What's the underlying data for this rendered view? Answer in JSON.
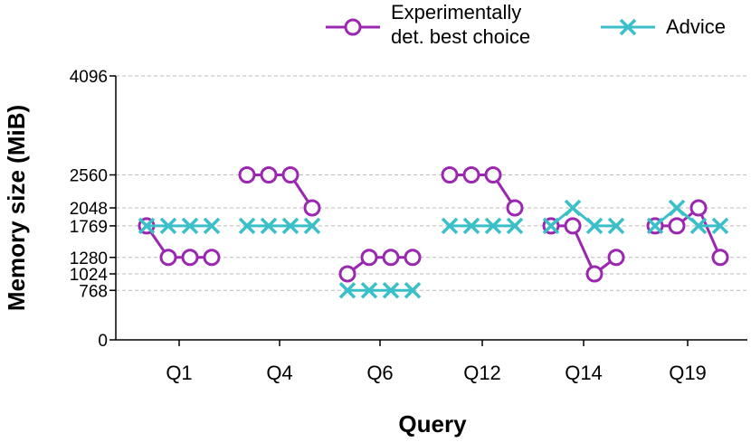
{
  "chart_data": {
    "type": "line",
    "title": "",
    "xlabel": "Query",
    "ylabel": "Memory size (MiB)",
    "ylim": [
      0,
      4096
    ],
    "yticks": [
      0,
      768,
      1024,
      1280,
      1769,
      2048,
      2560,
      4096
    ],
    "grid": "dashed horizontal at y ticks",
    "legend_position": "top-right",
    "categories": [
      "Q1",
      "Q4",
      "Q6",
      "Q12",
      "Q14",
      "Q19"
    ],
    "points_per_category": 4,
    "series": [
      {
        "name": "Experimentally det. best choice",
        "name_lines": [
          "Experimentally",
          "det. best choice"
        ],
        "marker": "circle",
        "color": "#9b27b0",
        "values": [
          [
            1769,
            1280,
            1280,
            1280
          ],
          [
            2560,
            2560,
            2560,
            2048
          ],
          [
            1024,
            1280,
            1280,
            1280
          ],
          [
            2560,
            2560,
            2560,
            2048
          ],
          [
            1769,
            1769,
            1024,
            1280
          ],
          [
            1769,
            1769,
            2048,
            1280
          ]
        ]
      },
      {
        "name": "Advice",
        "name_lines": [
          "Advice"
        ],
        "marker": "x",
        "color": "#3bbfc9",
        "values": [
          [
            1769,
            1769,
            1769,
            1769
          ],
          [
            1769,
            1769,
            1769,
            1769
          ],
          [
            768,
            768,
            768,
            768
          ],
          [
            1769,
            1769,
            1769,
            1769
          ],
          [
            1769,
            2048,
            1769,
            1769
          ],
          [
            1769,
            2048,
            1769,
            1769
          ]
        ]
      }
    ]
  }
}
